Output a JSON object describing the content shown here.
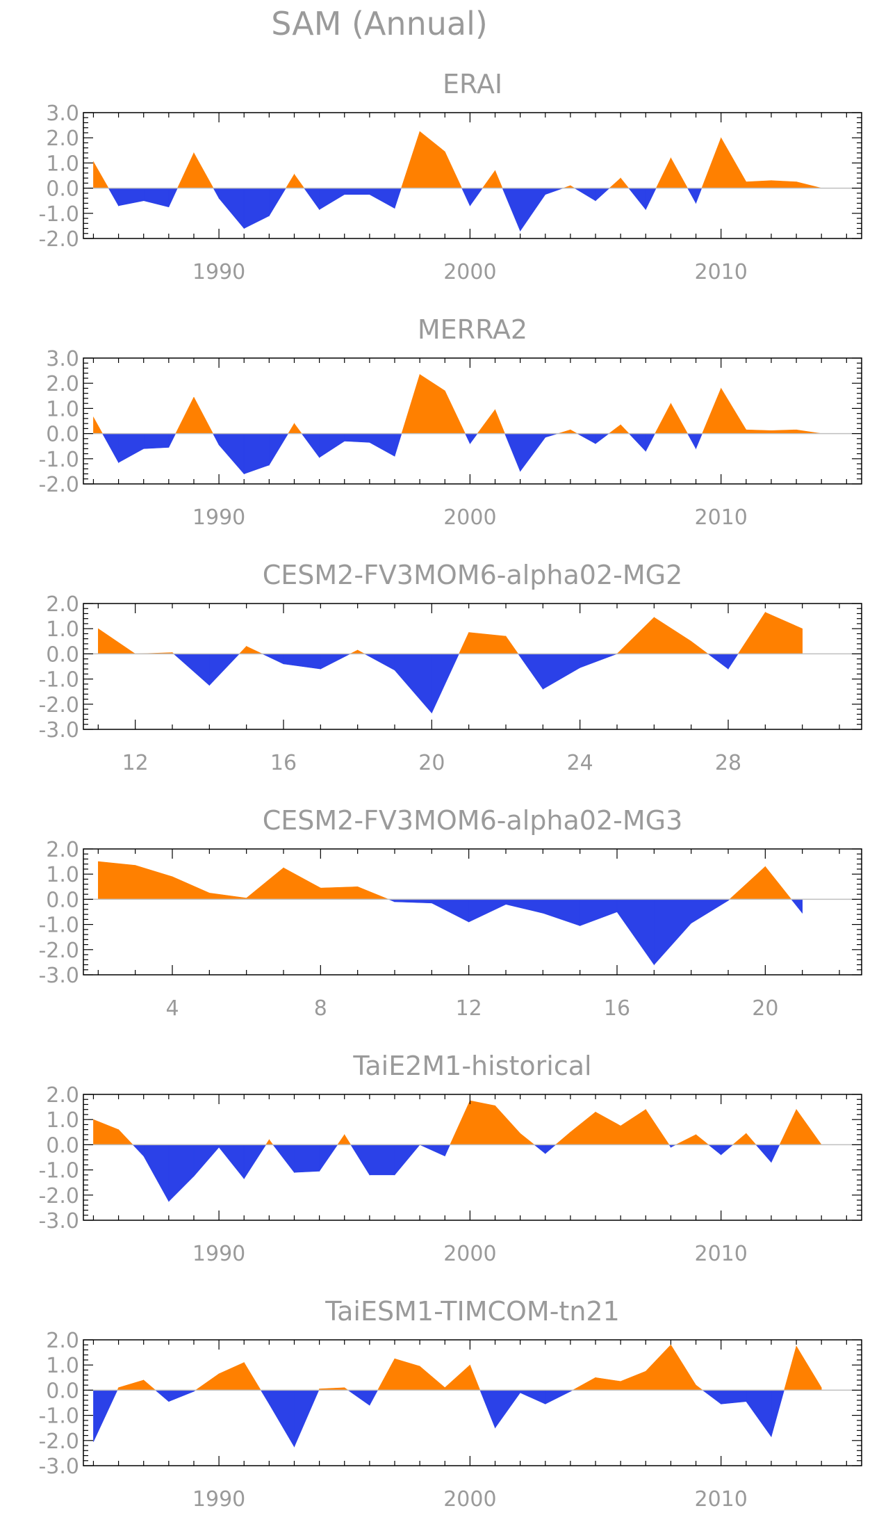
{
  "figure": {
    "title": "SAM (Annual)",
    "colors": {
      "positive": "#ff8000",
      "negative": "#2b41e8",
      "axis": "#000000",
      "text": "#9a9a9a",
      "zero_line": "#bfbfbf"
    }
  },
  "chart_data": [
    {
      "type": "area",
      "title": "ERAI",
      "xlabel": "",
      "ylabel": "",
      "xlim": [
        1984.6,
        2015.6
      ],
      "ylim": [
        -2.0,
        3.0
      ],
      "yticks": [
        "3.0",
        "2.0",
        "1.0",
        "0.0",
        "-1.0",
        "-2.0"
      ],
      "xticks": [
        "1990",
        "2000",
        "2010"
      ],
      "grid": false,
      "x": [
        1985,
        1986,
        1987,
        1988,
        1989,
        1990,
        1991,
        1992,
        1993,
        1994,
        1995,
        1996,
        1997,
        1998,
        1999,
        2000,
        2001,
        2002,
        2003,
        2004,
        2005,
        2006,
        2007,
        2008,
        2009,
        2010,
        2011,
        2012,
        2013,
        2014
      ],
      "values": [
        1.05,
        -0.7,
        -0.5,
        -0.75,
        1.4,
        -0.4,
        -1.6,
        -1.1,
        0.55,
        -0.85,
        -0.25,
        -0.25,
        -0.8,
        2.25,
        1.45,
        -0.7,
        0.7,
        -1.7,
        -0.25,
        0.1,
        -0.5,
        0.4,
        -0.85,
        1.2,
        -0.6,
        2.0,
        0.25,
        0.3,
        0.25,
        0.0
      ]
    },
    {
      "type": "area",
      "title": "MERRA2",
      "xlabel": "",
      "ylabel": "",
      "xlim": [
        1984.6,
        2015.6
      ],
      "ylim": [
        -2.0,
        3.0
      ],
      "yticks": [
        "3.0",
        "2.0",
        "1.0",
        "0.0",
        "-1.0",
        "-2.0"
      ],
      "xticks": [
        "1990",
        "2000",
        "2010"
      ],
      "grid": false,
      "x": [
        1985,
        1986,
        1987,
        1988,
        1989,
        1990,
        1991,
        1992,
        1993,
        1994,
        1995,
        1996,
        1997,
        1998,
        1999,
        2000,
        2001,
        2002,
        2003,
        2004,
        2005,
        2006,
        2007,
        2008,
        2009,
        2010,
        2011,
        2012,
        2013,
        2014
      ],
      "values": [
        0.65,
        -1.15,
        -0.6,
        -0.55,
        1.45,
        -0.45,
        -1.6,
        -1.25,
        0.4,
        -0.95,
        -0.3,
        -0.35,
        -0.9,
        2.35,
        1.7,
        -0.4,
        0.95,
        -1.5,
        -0.15,
        0.15,
        -0.4,
        0.35,
        -0.7,
        1.2,
        -0.6,
        1.8,
        0.15,
        0.12,
        0.15,
        0.0
      ]
    },
    {
      "type": "area",
      "title": "CESM2-FV3MOM6-alpha02-MG2",
      "xlabel": "",
      "ylabel": "",
      "xlim": [
        10.6,
        31.6
      ],
      "ylim": [
        -3.0,
        2.0
      ],
      "yticks": [
        "2.0",
        "1.0",
        "0.0",
        "-1.0",
        "-2.0",
        "-3.0"
      ],
      "xticks": [
        "12",
        "16",
        "20",
        "24",
        "28"
      ],
      "grid": false,
      "x": [
        11,
        12,
        13,
        14,
        15,
        16,
        17,
        18,
        19,
        20,
        21,
        22,
        23,
        24,
        25,
        26,
        27,
        28,
        29,
        30
      ],
      "values": [
        1.0,
        0.0,
        0.05,
        -1.25,
        0.3,
        -0.4,
        -0.6,
        0.15,
        -0.65,
        -2.35,
        0.85,
        0.7,
        -1.4,
        -0.55,
        0.0,
        1.45,
        0.5,
        -0.6,
        1.65,
        1.0
      ]
    },
    {
      "type": "area",
      "title": "CESM2-FV3MOM6-alpha02-MG3",
      "xlabel": "",
      "ylabel": "",
      "xlim": [
        1.6,
        22.6
      ],
      "ylim": [
        -3.0,
        2.0
      ],
      "yticks": [
        "2.0",
        "1.0",
        "0.0",
        "-1.0",
        "-2.0",
        "-3.0"
      ],
      "xticks": [
        "4",
        "8",
        "12",
        "16",
        "20"
      ],
      "grid": false,
      "x": [
        2,
        3,
        4,
        5,
        6,
        7,
        8,
        9,
        10,
        11,
        12,
        13,
        14,
        15,
        16,
        17,
        18,
        19,
        20,
        21
      ],
      "values": [
        1.5,
        1.35,
        0.9,
        0.25,
        0.05,
        1.25,
        0.45,
        0.5,
        -0.1,
        -0.15,
        -0.9,
        -0.2,
        -0.55,
        -1.05,
        -0.5,
        -2.6,
        -0.95,
        -0.05,
        1.3,
        -0.55
      ]
    },
    {
      "type": "area",
      "title": "TaiE2M1-historical",
      "xlabel": "",
      "ylabel": "",
      "xlim": [
        1984.6,
        2015.6
      ],
      "ylim": [
        -3.0,
        2.0
      ],
      "yticks": [
        "2.0",
        "1.0",
        "0.0",
        "-1.0",
        "-2.0",
        "-3.0"
      ],
      "xticks": [
        "1990",
        "2000",
        "2010"
      ],
      "grid": false,
      "x": [
        1985,
        1986,
        1987,
        1988,
        1989,
        1990,
        1991,
        1992,
        1993,
        1994,
        1995,
        1996,
        1997,
        1998,
        1999,
        2000,
        2001,
        2002,
        2003,
        2004,
        2005,
        2006,
        2007,
        2008,
        2009,
        2010,
        2011,
        2012,
        2013,
        2014
      ],
      "values": [
        1.0,
        0.6,
        -0.45,
        -2.25,
        -1.25,
        -0.1,
        -1.35,
        0.2,
        -1.1,
        -1.05,
        0.4,
        -1.2,
        -1.2,
        0.0,
        -0.45,
        1.75,
        1.55,
        0.45,
        -0.35,
        0.5,
        1.3,
        0.75,
        1.4,
        -0.1,
        0.4,
        -0.4,
        0.45,
        -0.7,
        1.4,
        0.0
      ]
    },
    {
      "type": "area",
      "title": "TaiESM1-TIMCOM-tn21",
      "xlabel": "",
      "ylabel": "",
      "xlim": [
        1984.6,
        2015.6
      ],
      "ylim": [
        -3.0,
        2.0
      ],
      "yticks": [
        "2.0",
        "1.0",
        "0.0",
        "-1.0",
        "-2.0",
        "-3.0"
      ],
      "xticks": [
        "1990",
        "2000",
        "2010"
      ],
      "grid": false,
      "x": [
        1985,
        1986,
        1987,
        1988,
        1989,
        1990,
        1991,
        1992,
        1993,
        1994,
        1995,
        1996,
        1997,
        1998,
        1999,
        2000,
        2001,
        2002,
        2003,
        2004,
        2005,
        2006,
        2007,
        2008,
        2009,
        2010,
        2011,
        2012,
        2013,
        2014
      ],
      "values": [
        -2.05,
        0.1,
        0.4,
        -0.45,
        -0.05,
        0.65,
        1.1,
        -0.55,
        -2.25,
        0.05,
        0.1,
        -0.6,
        1.25,
        0.95,
        0.1,
        1.0,
        -1.5,
        -0.1,
        -0.55,
        -0.05,
        0.5,
        0.35,
        0.75,
        1.8,
        0.2,
        -0.55,
        -0.45,
        -1.85,
        1.75,
        0.1
      ]
    }
  ]
}
